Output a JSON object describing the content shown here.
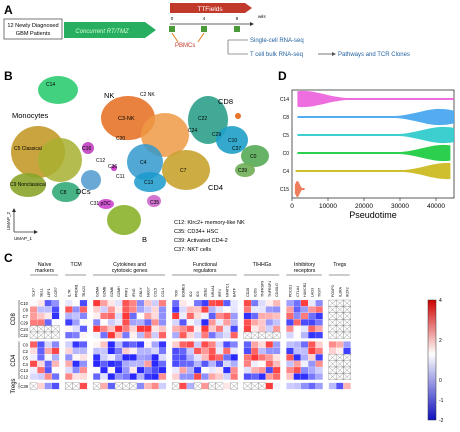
{
  "panels": {
    "a": "A",
    "b": "B",
    "c": "C",
    "d": "D"
  },
  "panel_a": {
    "patients": [
      "12 Newly Diagnosed",
      "GBM Patients"
    ],
    "therapy": "Concurrent RT/TMZ",
    "ttfields": "TTFields",
    "weeks_unit": "wks",
    "ticks": [
      "0",
      "4",
      "8"
    ],
    "pbmcs": "PBMCs",
    "sc_rna": "Single-cell RNA-seq",
    "tcell_bulk": "T cell bulk RNA-seq",
    "pathways": "Pathways and TCR Clones"
  },
  "panel_b": {
    "cluster_labels": {
      "nk": "NK",
      "cd8": "CD8",
      "monocytes": "Monocytes",
      "dcs": "DCs",
      "cd4": "CD4",
      "b": "B",
      "c14": "C14",
      "c16": "C16",
      "c5_classical": "C5 Classical",
      "c9_nonclassical": "C9 Nonclassical",
      "c8": "C8",
      "c3_nk": "C3-NK",
      "c22": "C22",
      "c24": "C24",
      "c29": "C29",
      "c7": "C7",
      "c10": "C10",
      "c30": "C30",
      "c36": "C36",
      "c11": "C11",
      "c35": "C35",
      "c37": "C37",
      "c31_pdc": "C31 pDC",
      "c0": "C0",
      "c4": "C4",
      "c13": "C13",
      "c12": "C12",
      "c39": "C39",
      "c2_nk": "C2 NK"
    },
    "legend": [
      "C12: Klrc2+ memory-like NK",
      "C35: CD34+ HSC",
      "C39: Activated CD4-2",
      "C37: NKT cells"
    ],
    "axis_labels": {
      "x": "UMAP_1",
      "y": "UMAP_2"
    }
  },
  "chart_data": [
    {
      "type": "violin",
      "panel": "D",
      "title": "",
      "xlabel": "Pseudotime",
      "ylabel": "",
      "xlim": [
        0,
        45000
      ],
      "x_ticks": [
        "0",
        "10000",
        "20000",
        "30000",
        "40000"
      ],
      "categories": [
        "C14",
        "C8",
        "C5",
        "C0",
        "C4",
        "C15"
      ],
      "series": [
        {
          "category": "C14",
          "color": "#ee66dd",
          "range": [
            1500,
            45000
          ],
          "peak": 3000
        },
        {
          "category": "C8",
          "color": "#4aa8ee",
          "range": [
            1500,
            45000
          ],
          "peak": 41000
        },
        {
          "category": "C5",
          "color": "#33cccc",
          "range": [
            1500,
            45000
          ],
          "peak": 42000
        },
        {
          "category": "C0",
          "color": "#22cc44",
          "range": [
            1500,
            44000
          ],
          "peak": 42000
        },
        {
          "category": "C4",
          "color": "#ccbb22",
          "range": [
            1000,
            44000
          ],
          "peak": 43000
        },
        {
          "category": "C15",
          "color": "#ee7755",
          "range": [
            800,
            3500
          ],
          "peak": 1500
        }
      ]
    },
    {
      "type": "heatmap",
      "panel": "C",
      "column_groups": [
        {
          "label": [
            "Naïve",
            "markers"
          ],
          "columns": [
            "TCF7",
            "SELL",
            "LEF1",
            "CCR7"
          ]
        },
        {
          "label": [
            "TCM"
          ],
          "columns": [
            "IL7R",
            "PRDM1",
            "TBX21"
          ]
        },
        {
          "label": [
            "Cytokines and",
            "cytotoxic genes"
          ],
          "columns": [
            "GZMA",
            "GZMB",
            "GZMK",
            "GZMH",
            "PRF1",
            "IFNG",
            "GNLY",
            "NKG7",
            "CCL5",
            "CCL4"
          ]
        },
        {
          "label": [
            "Functional",
            "regulators"
          ],
          "columns": [
            "TOX",
            "EOMES",
            "ID2",
            "ID3",
            "ZEB2",
            "NR4A1",
            "IRF4",
            "NFATC1",
            "BATF"
          ]
        },
        {
          "label": [
            "TIHHGs"
          ],
          "columns": [
            "CD28",
            "ICOS",
            "TNFRSF9",
            "TNFRSF4",
            "CD40LG"
          ]
        },
        {
          "label": [
            "Inhibitory",
            "receptors"
          ],
          "columns": [
            "PDCD1",
            "CTLA4",
            "HAVCR2",
            "LAG3",
            "TIGIT"
          ]
        },
        {
          "label": [
            "Tregs"
          ],
          "columns": [
            "FOXP3",
            "IL2RA",
            "IKZF2"
          ]
        }
      ],
      "row_groups": [
        {
          "label": "CD8",
          "rows": [
            "C10",
            "C8",
            "C7",
            "C29",
            "C24",
            "C22"
          ]
        },
        {
          "label": "CD4",
          "rows": [
            "C0",
            "C2",
            "C5",
            "C4",
            "C13",
            "C12"
          ]
        },
        {
          "label": "Tregs",
          "rows": [
            "C39"
          ]
        }
      ],
      "colorbar": {
        "min": -2,
        "max": 4,
        "ticks": [
          "4",
          "2",
          "0",
          "-1",
          "-2"
        ]
      },
      "missing_marker": "cross"
    }
  ]
}
